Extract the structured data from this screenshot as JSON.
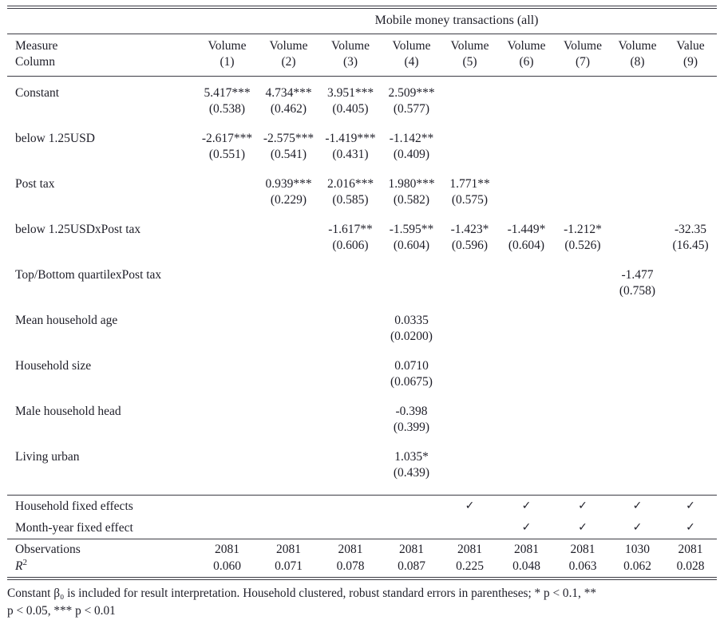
{
  "table": {
    "spanner": "Mobile money transactions (all)",
    "header": {
      "measure_label": "Measure",
      "column_label": "Column",
      "measures": [
        "Volume",
        "Volume",
        "Volume",
        "Volume",
        "Volume",
        "Volume",
        "Volume",
        "Volume",
        "Value"
      ],
      "numbers": [
        "(1)",
        "(2)",
        "(3)",
        "(4)",
        "(5)",
        "(6)",
        "(7)",
        "(8)",
        "(9)"
      ]
    },
    "coef_rows": [
      {
        "label": "Constant",
        "coefs": [
          "5.417***",
          "4.734***",
          "3.951***",
          "2.509***",
          "",
          "",
          "",
          "",
          ""
        ],
        "ses": [
          "(0.538)",
          "(0.462)",
          "(0.405)",
          "(0.577)",
          "",
          "",
          "",
          "",
          ""
        ]
      },
      {
        "label": "below 1.25USD",
        "coefs": [
          "-2.617***",
          "-2.575***",
          "-1.419***",
          "-1.142**",
          "",
          "",
          "",
          "",
          ""
        ],
        "ses": [
          "(0.551)",
          "(0.541)",
          "(0.431)",
          "(0.409)",
          "",
          "",
          "",
          "",
          ""
        ]
      },
      {
        "label": "Post tax",
        "coefs": [
          "",
          "0.939***",
          "2.016***",
          "1.980***",
          "1.771**",
          "",
          "",
          "",
          ""
        ],
        "ses": [
          "",
          "(0.229)",
          "(0.585)",
          "(0.582)",
          "(0.575)",
          "",
          "",
          "",
          ""
        ]
      },
      {
        "label": "below 1.25USDxPost tax",
        "coefs": [
          "",
          "",
          "-1.617**",
          "-1.595**",
          "-1.423*",
          "-1.449*",
          "-1.212*",
          "",
          "-32.35"
        ],
        "ses": [
          "",
          "",
          "(0.606)",
          "(0.604)",
          "(0.596)",
          "(0.604)",
          "(0.526)",
          "",
          "(16.45)"
        ]
      },
      {
        "label": "Top/Bottom quartilexPost tax",
        "coefs": [
          "",
          "",
          "",
          "",
          "",
          "",
          "",
          "-1.477",
          ""
        ],
        "ses": [
          "",
          "",
          "",
          "",
          "",
          "",
          "",
          "(0.758)",
          ""
        ]
      },
      {
        "label": "Mean household age",
        "coefs": [
          "",
          "",
          "",
          "0.0335",
          "",
          "",
          "",
          "",
          ""
        ],
        "ses": [
          "",
          "",
          "",
          "(0.0200)",
          "",
          "",
          "",
          "",
          ""
        ]
      },
      {
        "label": "Household size",
        "coefs": [
          "",
          "",
          "",
          "0.0710",
          "",
          "",
          "",
          "",
          ""
        ],
        "ses": [
          "",
          "",
          "",
          "(0.0675)",
          "",
          "",
          "",
          "",
          ""
        ]
      },
      {
        "label": "Male household head",
        "coefs": [
          "",
          "",
          "",
          "-0.398",
          "",
          "",
          "",
          "",
          ""
        ],
        "ses": [
          "",
          "",
          "",
          "(0.399)",
          "",
          "",
          "",
          "",
          ""
        ]
      },
      {
        "label": "Living urban",
        "coefs": [
          "",
          "",
          "",
          "1.035*",
          "",
          "",
          "",
          "",
          ""
        ],
        "ses": [
          "",
          "",
          "",
          "(0.439)",
          "",
          "",
          "",
          "",
          ""
        ]
      }
    ],
    "checkmark": "✓",
    "fe_rows": [
      {
        "label": "Household fixed effects",
        "checks": [
          false,
          false,
          false,
          false,
          true,
          true,
          true,
          true,
          true
        ]
      },
      {
        "label": "Month-year fixed effect",
        "checks": [
          false,
          false,
          false,
          false,
          false,
          true,
          true,
          true,
          true
        ]
      }
    ],
    "stat_rows": [
      {
        "label": "Observations",
        "values": [
          "2081",
          "2081",
          "2081",
          "2081",
          "2081",
          "2081",
          "2081",
          "1030",
          "2081"
        ]
      },
      {
        "label": "R",
        "sup": "2",
        "values": [
          "0.060",
          "0.071",
          "0.078",
          "0.087",
          "0.225",
          "0.048",
          "0.063",
          "0.062",
          "0.028"
        ]
      }
    ]
  },
  "footnote": {
    "line1": "Constant β₀ is included for result interpretation.  Household clustered, robust standard errors in parentheses; * p < 0.1, **",
    "line2": "p < 0.05, *** p < 0.01"
  },
  "colors": {
    "text": "#1e1e28",
    "rule": "#3b3b44",
    "background": "#ffffff"
  }
}
